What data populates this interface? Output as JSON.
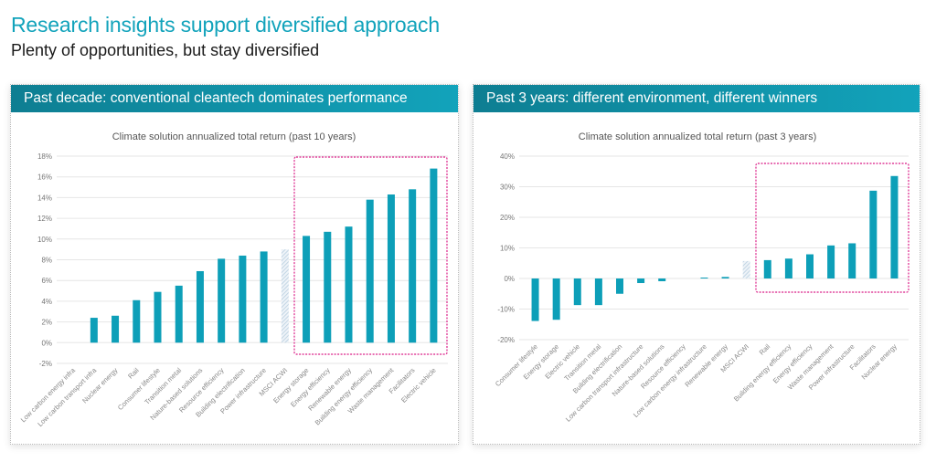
{
  "header": {
    "title": "Research insights support diversified approach",
    "subtitle": "Plenty of opportunities, but stay diversified"
  },
  "colors": {
    "accent": "#12a3bb",
    "bar": "#0d9fb8",
    "benchmark_hatch": "#b8cfe0",
    "highlight_box": "#e0409a",
    "grid": "#e6e6e6"
  },
  "panels": [
    {
      "heading": "Past decade: conventional cleantech dominates performance"
    },
    {
      "heading": "Past 3 years: different environment, different winners"
    }
  ],
  "chart_data": [
    {
      "type": "bar",
      "title": "Climate solution annualized total return (past 10 years)",
      "xlabel": "",
      "ylabel": "",
      "ylim": [
        -2,
        18
      ],
      "yticks": [
        -2,
        0,
        2,
        4,
        6,
        8,
        10,
        12,
        14,
        16,
        18
      ],
      "ytick_labels": [
        "-2%",
        "0%",
        "2%",
        "4%",
        "6%",
        "8%",
        "10%",
        "12%",
        "14%",
        "16%",
        "18%"
      ],
      "grid": true,
      "benchmark_category": "MSCI ACWI",
      "highlight_categories": [
        "Energy storage",
        "Energy efficiency",
        "Renewable energy",
        "Building energy efficiency",
        "Waste management",
        "Facilitators",
        "Electric vehicle"
      ],
      "categories": [
        "Low carbon energy infra",
        "Low carbon transport infra",
        "Nuclear energy",
        "Rail",
        "Consumer lifestyle",
        "Transition metal",
        "Nature-based solutions",
        "Resource efficiency",
        "Building electrification",
        "Power infrastructure",
        "MSCI ACWI",
        "Energy storage",
        "Energy efficiency",
        "Renewable energy",
        "Building energy efficiency",
        "Waste management",
        "Facilitators",
        "Electric vehicle"
      ],
      "values": [
        0,
        2.4,
        2.6,
        4.1,
        4.9,
        5.5,
        6.9,
        8.1,
        8.4,
        8.8,
        9.0,
        10.3,
        10.7,
        11.2,
        13.8,
        14.3,
        14.8,
        16.8
      ]
    },
    {
      "type": "bar",
      "title": "Climate solution annualized total return (past 3 years)",
      "xlabel": "",
      "ylabel": "",
      "ylim": [
        -20,
        40
      ],
      "yticks": [
        -20,
        -10,
        0,
        10,
        20,
        30,
        40
      ],
      "ytick_labels": [
        "-20%",
        "-10%",
        "0%",
        "10%",
        "20%",
        "30%",
        "40%"
      ],
      "grid": true,
      "benchmark_category": "MSCI ACWI",
      "highlight_categories": [
        "Rail",
        "Building energy efficiency",
        "Energy efficiency",
        "Waste management",
        "Power infrastructure",
        "Facilitators",
        "Nuclear energy"
      ],
      "categories": [
        "Consumer lifestyle",
        "Energy storage",
        "Electric vehicle",
        "Transition metal",
        "Building electrification",
        "Low carbon transport infrastructure",
        "Nature-based solutions",
        "Resource efficiency",
        "Low carbon energy infrastructure",
        "Renewable energy",
        "MSCI ACWI",
        "Rail",
        "Building energy efficiency",
        "Energy efficiency",
        "Waste management",
        "Power infrastructure",
        "Facilitators",
        "Nuclear energy"
      ],
      "values": [
        -13.9,
        -13.5,
        -8.7,
        -8.7,
        -5.0,
        -1.5,
        -0.9,
        0.0,
        0.3,
        0.5,
        5.7,
        6.0,
        6.5,
        7.9,
        10.8,
        11.5,
        28.7,
        33.5
      ]
    }
  ]
}
